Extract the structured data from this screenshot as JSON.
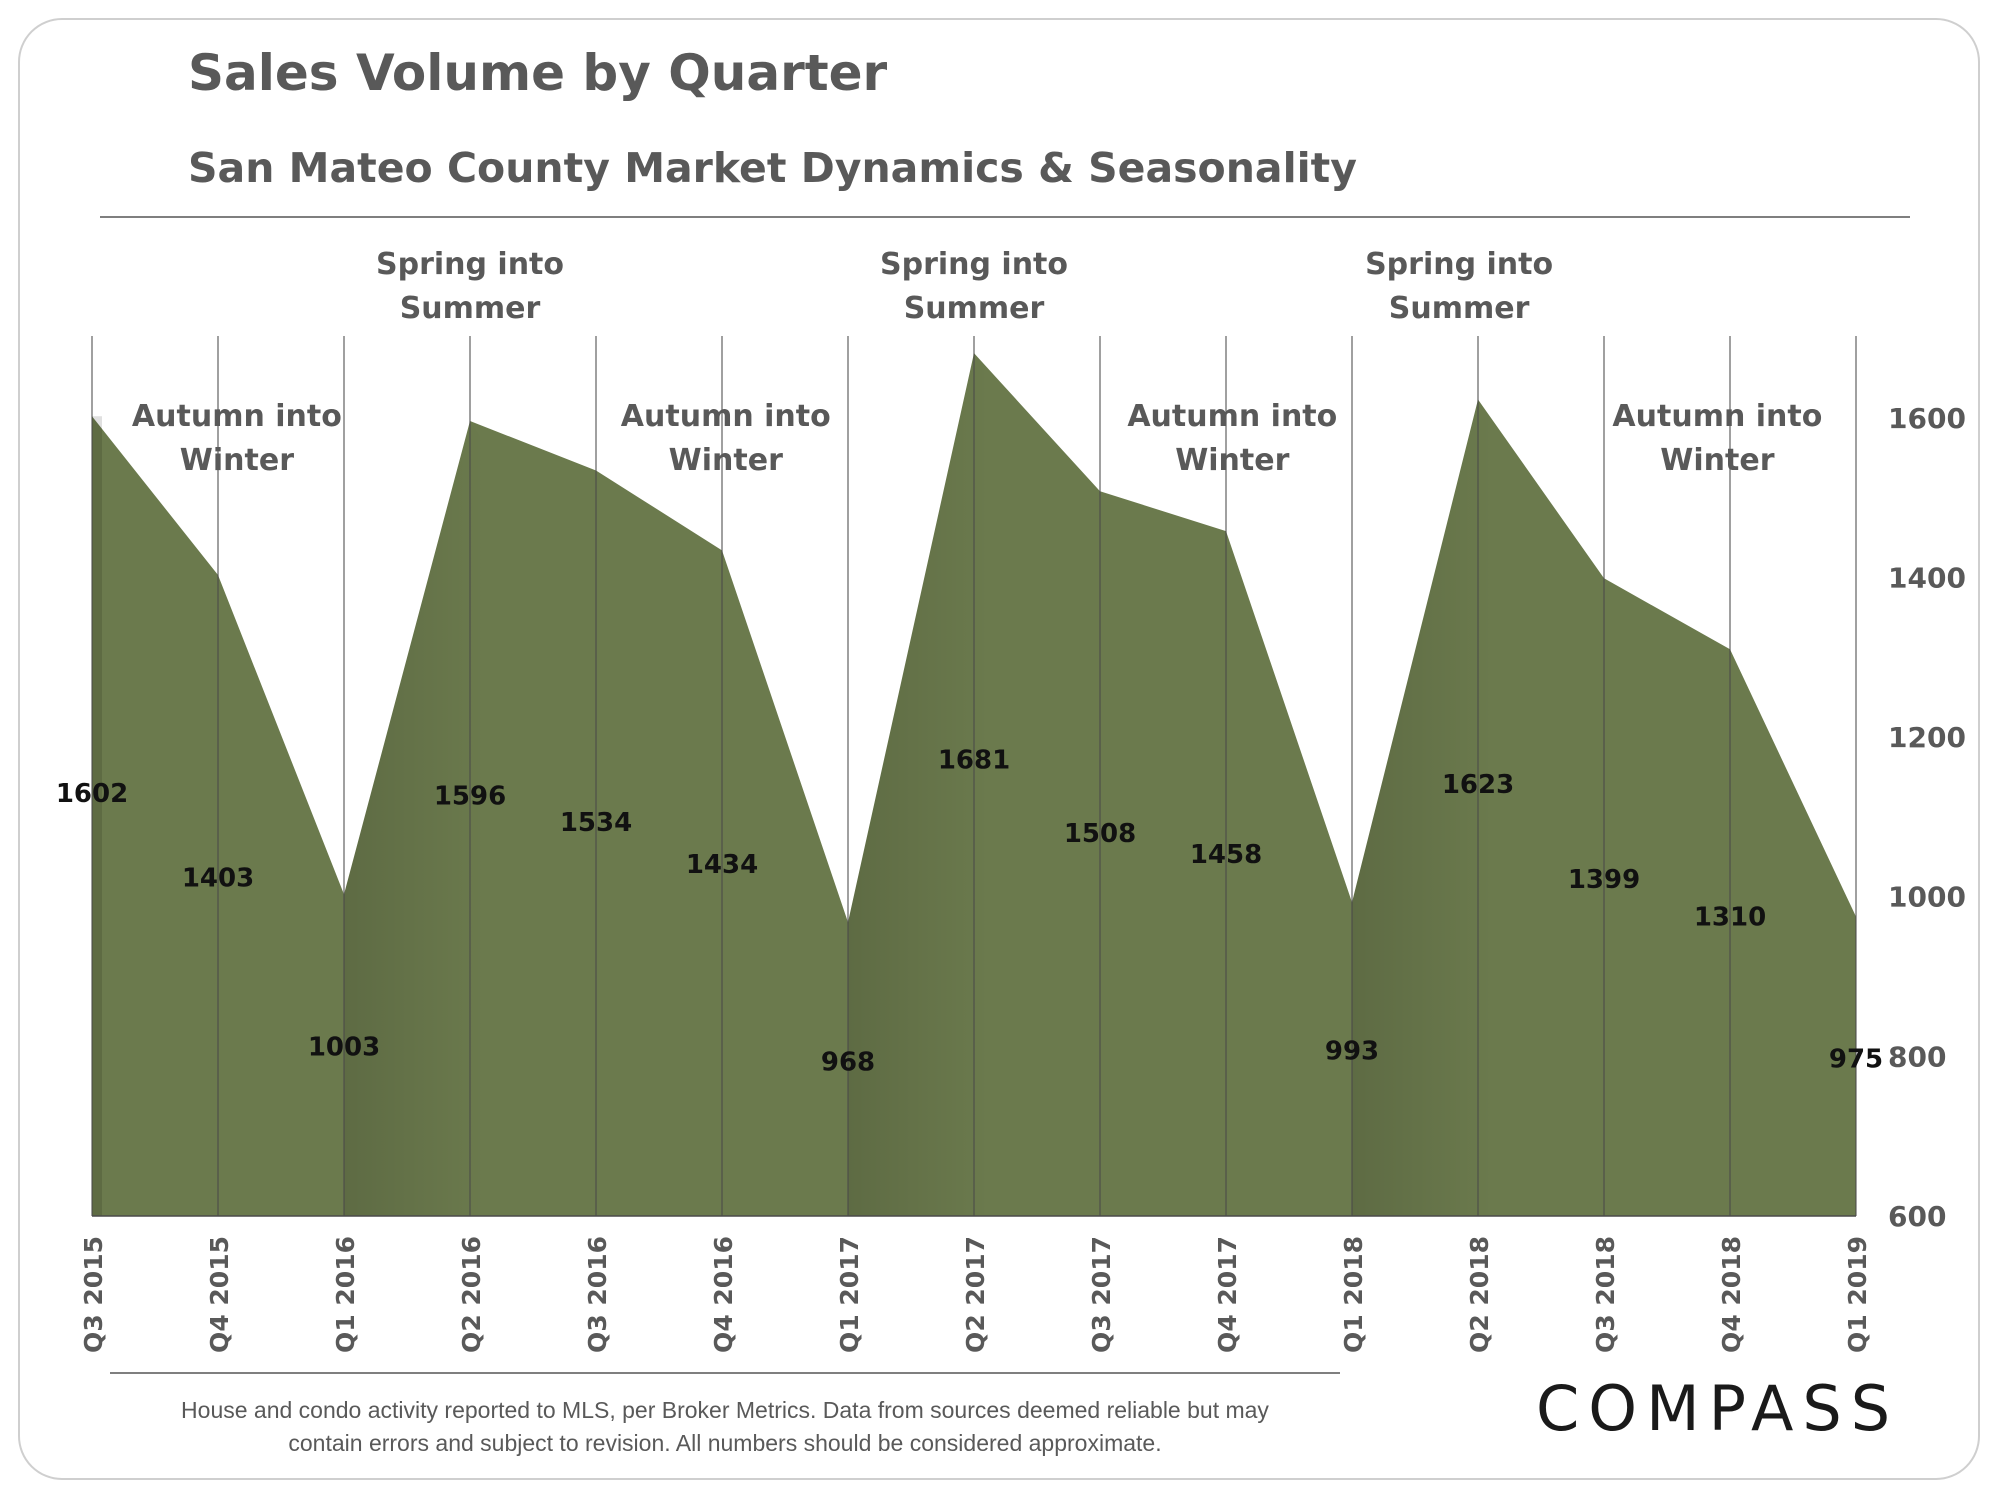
{
  "header": {
    "title": "Sales Volume by Quarter",
    "subtitle": "San Mateo County Market Dynamics & Seasonality"
  },
  "chart_data": {
    "type": "area",
    "title": "Sales Volume by Quarter",
    "subtitle": "San Mateo County Market Dynamics & Seasonality",
    "categories": [
      "Q3 2015",
      "Q4 2015",
      "Q1 2016",
      "Q2 2016",
      "Q3 2016",
      "Q4 2016",
      "Q1 2017",
      "Q2 2017",
      "Q3 2017",
      "Q4 2017",
      "Q1 2018",
      "Q2 2018",
      "Q3 2018",
      "Q4 2018",
      "Q1 2019"
    ],
    "values": [
      1602,
      1403,
      1003,
      1596,
      1534,
      1434,
      968,
      1681,
      1508,
      1458,
      993,
      1623,
      1399,
      1310,
      975
    ],
    "ylim": [
      600,
      1700
    ],
    "y_ticks": [
      600,
      800,
      1000,
      1200,
      1400,
      1600
    ],
    "y_axis_side": "right",
    "vertical_gridlines": true,
    "fill_color": "#6b7a4d",
    "annotations": [
      {
        "lines": [
          "Autumn into",
          "Winter"
        ],
        "x_index": 1.15
      },
      {
        "lines": [
          "Spring into",
          "Summer"
        ],
        "x_index": 3.0
      },
      {
        "lines": [
          "Autumn into",
          "Winter"
        ],
        "x_index": 5.03
      },
      {
        "lines": [
          "Spring into",
          "Summer"
        ],
        "x_index": 7.0
      },
      {
        "lines": [
          "Autumn into",
          "Winter"
        ],
        "x_index": 9.05
      },
      {
        "lines": [
          "Spring into",
          "Summer"
        ],
        "x_index": 10.85
      },
      {
        "lines": [
          "Autumn into",
          "Winter"
        ],
        "x_index": 12.9
      }
    ]
  },
  "footer": {
    "line1": "House and condo activity reported to MLS, per Broker Metrics. Data from sources deemed  reliable but may",
    "line2": "contain errors and subject to revision. All numbers should be considered approximate.",
    "logo": "COMPASS"
  }
}
